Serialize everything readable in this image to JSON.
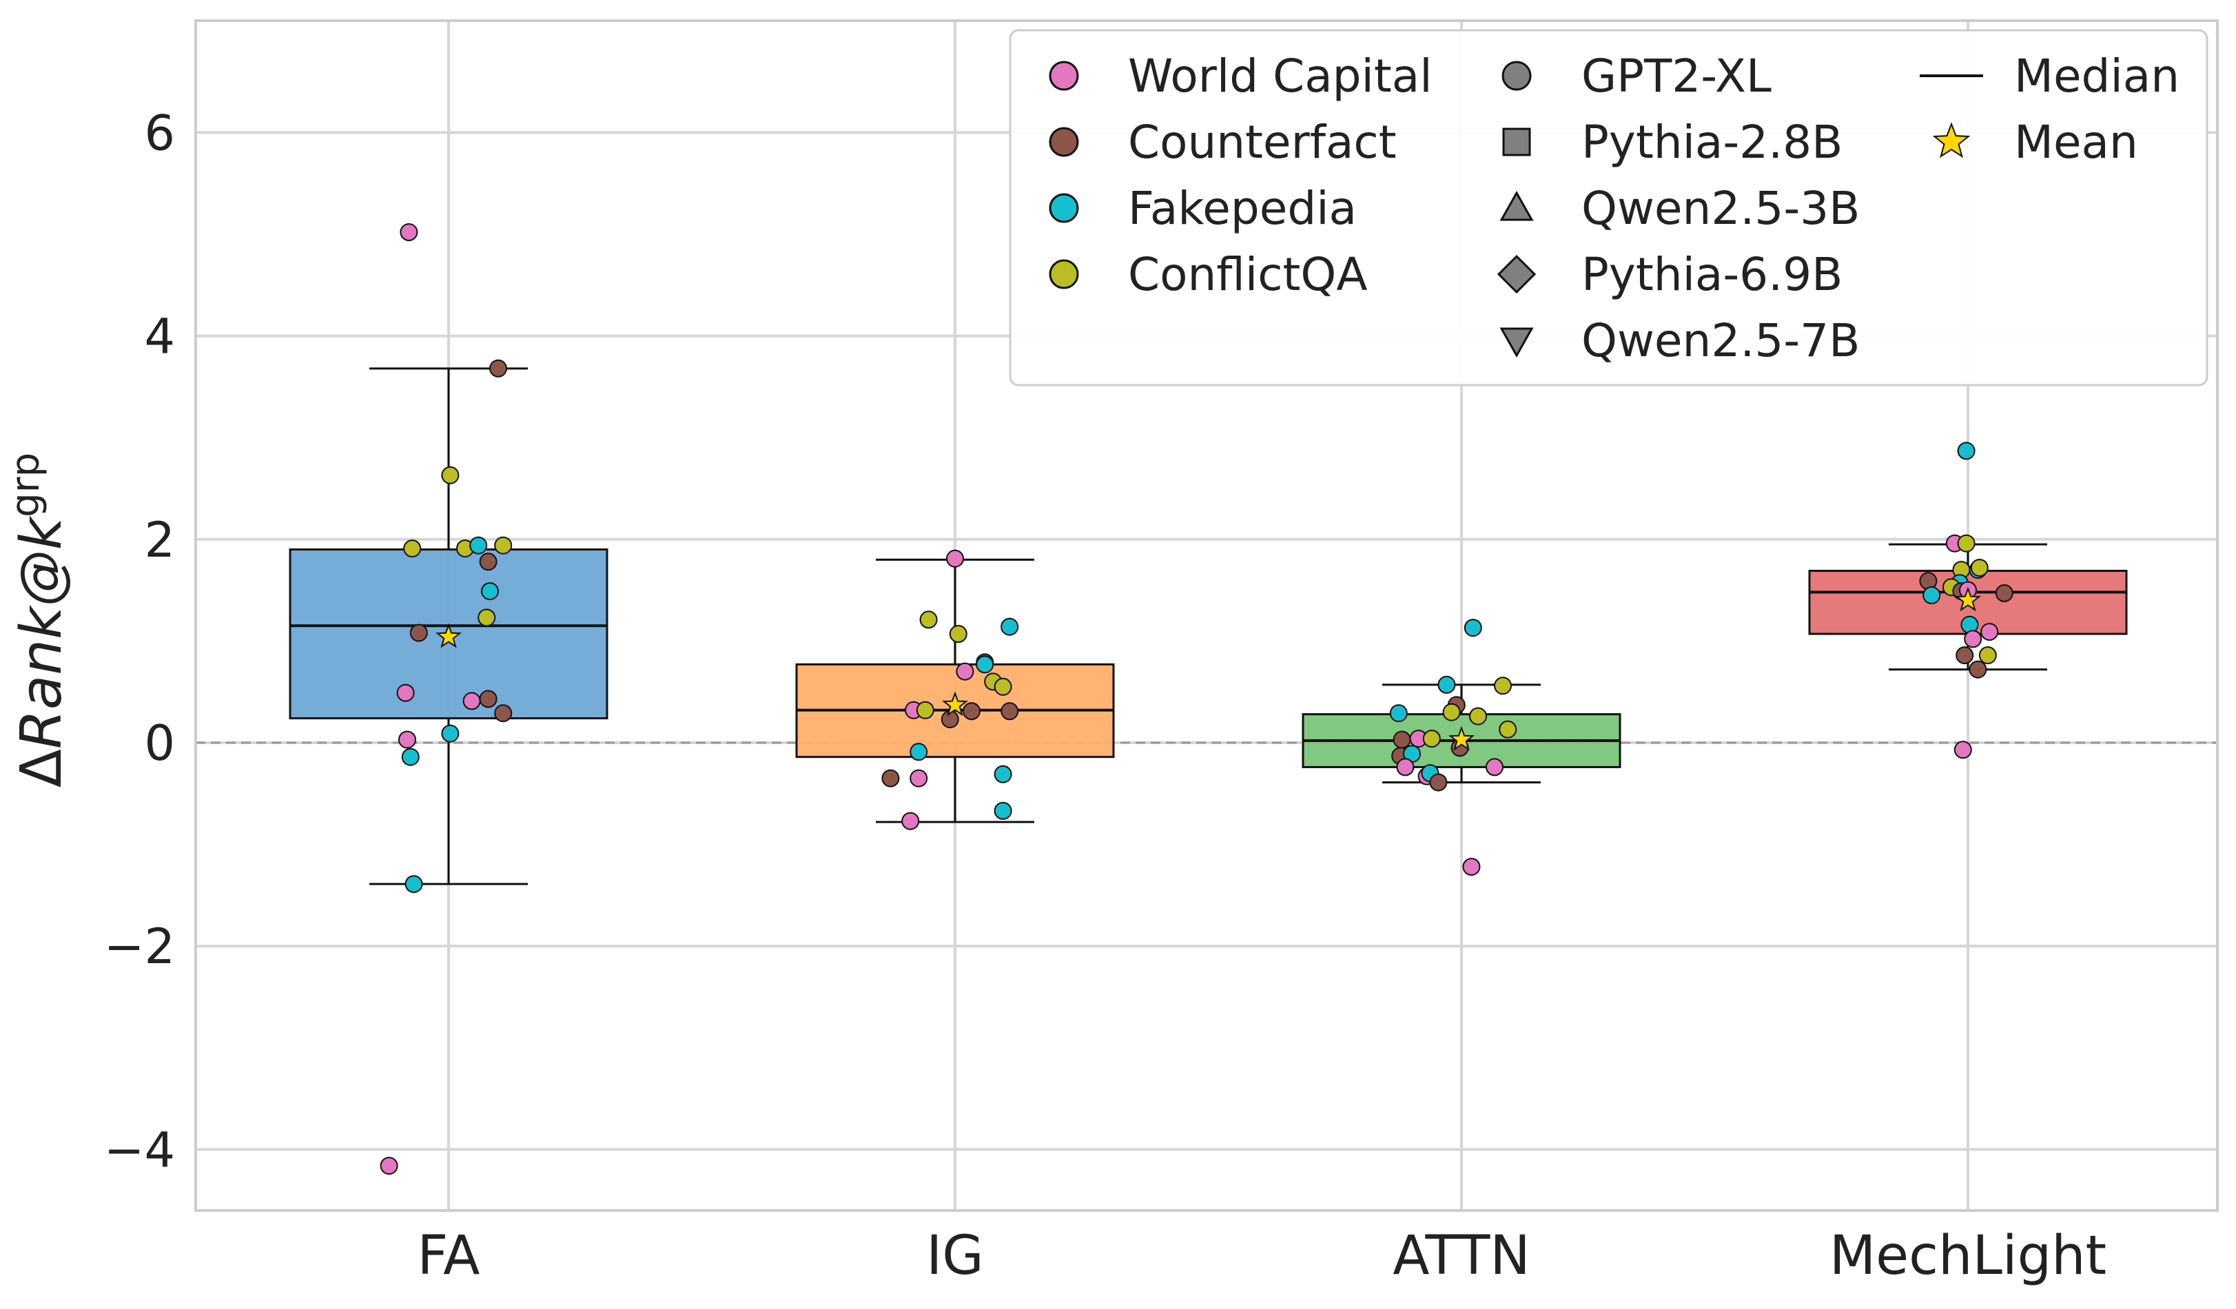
{
  "chart_data": {
    "type": "box",
    "ylabel": {
      "prefix": "Δ",
      "main": "Rank@k",
      "sup": "grp"
    },
    "ylim": [
      -4.6,
      7.1
    ],
    "yticks": [
      {
        "value": -4,
        "label": "−4"
      },
      {
        "value": -2,
        "label": "−2"
      },
      {
        "value": 0,
        "label": "0"
      },
      {
        "value": 2,
        "label": "2"
      },
      {
        "value": 4,
        "label": "4"
      },
      {
        "value": 6,
        "label": "6"
      }
    ],
    "reference_line": 0,
    "categories": [
      "FA",
      "IG",
      "ATTN",
      "MechLight"
    ],
    "boxes": [
      {
        "category": "FA",
        "color": "#6fa8d6",
        "q1": 0.24,
        "median": 1.15,
        "q3": 1.9,
        "whisker_low": -1.39,
        "whisker_high": 3.68,
        "mean": 1.04
      },
      {
        "category": "IG",
        "color": "#ffb06b",
        "q1": -0.14,
        "median": 0.32,
        "q3": 0.77,
        "whisker_low": -0.78,
        "whisker_high": 1.8,
        "mean": 0.37
      },
      {
        "category": "ATTN",
        "color": "#7ac67a",
        "q1": -0.24,
        "median": 0.02,
        "q3": 0.28,
        "whisker_low": -0.39,
        "whisker_high": 0.57,
        "mean": 0.03
      },
      {
        "category": "MechLight",
        "color": "#e57373",
        "q1": 1.07,
        "median": 1.48,
        "q3": 1.69,
        "whisker_low": 0.72,
        "whisker_high": 1.95,
        "mean": 1.4
      }
    ],
    "points": [
      {
        "category": "FA",
        "dataset": "World Capital",
        "jitter": -0.24,
        "value": 5.02
      },
      {
        "category": "FA",
        "dataset": "Counterfact",
        "jitter": 0.3,
        "value": 3.68
      },
      {
        "category": "FA",
        "dataset": "ConflictQA",
        "jitter": 0.01,
        "value": 2.63
      },
      {
        "category": "FA",
        "dataset": "ConflictQA",
        "jitter": -0.22,
        "value": 1.91
      },
      {
        "category": "FA",
        "dataset": "ConflictQA",
        "jitter": 0.1,
        "value": 1.91
      },
      {
        "category": "FA",
        "dataset": "Fakepedia",
        "jitter": 0.18,
        "value": 1.94
      },
      {
        "category": "FA",
        "dataset": "ConflictQA",
        "jitter": 0.33,
        "value": 1.94
      },
      {
        "category": "FA",
        "dataset": "Counterfact",
        "jitter": 0.24,
        "value": 1.78
      },
      {
        "category": "FA",
        "dataset": "Fakepedia",
        "jitter": 0.25,
        "value": 1.49
      },
      {
        "category": "FA",
        "dataset": "ConflictQA",
        "jitter": 0.23,
        "value": 1.23
      },
      {
        "category": "FA",
        "dataset": "Counterfact",
        "jitter": -0.18,
        "value": 1.08
      },
      {
        "category": "FA",
        "dataset": "World Capital",
        "jitter": -0.26,
        "value": 0.49
      },
      {
        "category": "FA",
        "dataset": "World Capital",
        "jitter": 0.14,
        "value": 0.41
      },
      {
        "category": "FA",
        "dataset": "Counterfact",
        "jitter": 0.24,
        "value": 0.43
      },
      {
        "category": "FA",
        "dataset": "Counterfact",
        "jitter": 0.33,
        "value": 0.29
      },
      {
        "category": "FA",
        "dataset": "Fakepedia",
        "jitter": 0.01,
        "value": 0.09
      },
      {
        "category": "FA",
        "dataset": "World Capital",
        "jitter": -0.25,
        "value": 0.03
      },
      {
        "category": "FA",
        "dataset": "Fakepedia",
        "jitter": -0.23,
        "value": -0.14
      },
      {
        "category": "FA",
        "dataset": "Fakepedia",
        "jitter": -0.21,
        "value": -1.39
      },
      {
        "category": "FA",
        "dataset": "World Capital",
        "jitter": -0.36,
        "value": -4.16
      },
      {
        "category": "IG",
        "dataset": "World Capital",
        "jitter": 0.0,
        "value": 1.81
      },
      {
        "category": "IG",
        "dataset": "ConflictQA",
        "jitter": -0.16,
        "value": 1.21
      },
      {
        "category": "IG",
        "dataset": "Fakepedia",
        "jitter": 0.33,
        "value": 1.14
      },
      {
        "category": "IG",
        "dataset": "ConflictQA",
        "jitter": 0.02,
        "value": 1.07
      },
      {
        "category": "IG",
        "dataset": "Counterfact",
        "jitter": 0.18,
        "value": 0.79
      },
      {
        "category": "IG",
        "dataset": "Fakepedia",
        "jitter": 0.18,
        "value": 0.77
      },
      {
        "category": "IG",
        "dataset": "World Capital",
        "jitter": 0.06,
        "value": 0.7
      },
      {
        "category": "IG",
        "dataset": "ConflictQA",
        "jitter": 0.23,
        "value": 0.6
      },
      {
        "category": "IG",
        "dataset": "ConflictQA",
        "jitter": 0.29,
        "value": 0.55
      },
      {
        "category": "IG",
        "dataset": "World Capital",
        "jitter": -0.25,
        "value": 0.32
      },
      {
        "category": "IG",
        "dataset": "ConflictQA",
        "jitter": -0.18,
        "value": 0.32
      },
      {
        "category": "IG",
        "dataset": "Counterfact",
        "jitter": 0.1,
        "value": 0.31
      },
      {
        "category": "IG",
        "dataset": "Counterfact",
        "jitter": 0.33,
        "value": 0.31
      },
      {
        "category": "IG",
        "dataset": "Counterfact",
        "jitter": -0.03,
        "value": 0.23
      },
      {
        "category": "IG",
        "dataset": "Fakepedia",
        "jitter": -0.22,
        "value": -0.09
      },
      {
        "category": "IG",
        "dataset": "Fakepedia",
        "jitter": 0.29,
        "value": -0.31
      },
      {
        "category": "IG",
        "dataset": "Counterfact",
        "jitter": -0.39,
        "value": -0.35
      },
      {
        "category": "IG",
        "dataset": "World Capital",
        "jitter": -0.22,
        "value": -0.35
      },
      {
        "category": "IG",
        "dataset": "Fakepedia",
        "jitter": 0.29,
        "value": -0.67
      },
      {
        "category": "IG",
        "dataset": "World Capital",
        "jitter": -0.27,
        "value": -0.77
      },
      {
        "category": "ATTN",
        "dataset": "Fakepedia",
        "jitter": 0.07,
        "value": 1.13
      },
      {
        "category": "ATTN",
        "dataset": "Fakepedia",
        "jitter": -0.09,
        "value": 0.57
      },
      {
        "category": "ATTN",
        "dataset": "ConflictQA",
        "jitter": 0.25,
        "value": 0.56
      },
      {
        "category": "ATTN",
        "dataset": "Counterfact",
        "jitter": -0.03,
        "value": 0.37
      },
      {
        "category": "ATTN",
        "dataset": "ConflictQA",
        "jitter": -0.06,
        "value": 0.3
      },
      {
        "category": "ATTN",
        "dataset": "Fakepedia",
        "jitter": -0.38,
        "value": 0.29
      },
      {
        "category": "ATTN",
        "dataset": "ConflictQA",
        "jitter": 0.1,
        "value": 0.26
      },
      {
        "category": "ATTN",
        "dataset": "ConflictQA",
        "jitter": 0.28,
        "value": 0.13
      },
      {
        "category": "ATTN",
        "dataset": "World Capital",
        "jitter": -0.26,
        "value": 0.04
      },
      {
        "category": "ATTN",
        "dataset": "Counterfact",
        "jitter": -0.36,
        "value": 0.03
      },
      {
        "category": "ATTN",
        "dataset": "ConflictQA",
        "jitter": -0.18,
        "value": 0.04
      },
      {
        "category": "ATTN",
        "dataset": "Counterfact",
        "jitter": -0.01,
        "value": -0.05
      },
      {
        "category": "ATTN",
        "dataset": "Counterfact",
        "jitter": -0.37,
        "value": -0.13
      },
      {
        "category": "ATTN",
        "dataset": "Fakepedia",
        "jitter": -0.3,
        "value": -0.11
      },
      {
        "category": "ATTN",
        "dataset": "World Capital",
        "jitter": -0.34,
        "value": -0.24
      },
      {
        "category": "ATTN",
        "dataset": "World Capital",
        "jitter": 0.2,
        "value": -0.24
      },
      {
        "category": "ATTN",
        "dataset": "World Capital",
        "jitter": -0.21,
        "value": -0.33
      },
      {
        "category": "ATTN",
        "dataset": "Fakepedia",
        "jitter": -0.19,
        "value": -0.3
      },
      {
        "category": "ATTN",
        "dataset": "Counterfact",
        "jitter": -0.14,
        "value": -0.39
      },
      {
        "category": "ATTN",
        "dataset": "World Capital",
        "jitter": 0.06,
        "value": -1.22
      },
      {
        "category": "MechLight",
        "dataset": "Fakepedia",
        "jitter": -0.01,
        "value": 2.87
      },
      {
        "category": "MechLight",
        "dataset": "World Capital",
        "jitter": -0.08,
        "value": 1.96
      },
      {
        "category": "MechLight",
        "dataset": "ConflictQA",
        "jitter": -0.01,
        "value": 1.96
      },
      {
        "category": "MechLight",
        "dataset": "ConflictQA",
        "jitter": -0.04,
        "value": 1.7
      },
      {
        "category": "MechLight",
        "dataset": "Fakepedia",
        "jitter": 0.06,
        "value": 1.7
      },
      {
        "category": "MechLight",
        "dataset": "ConflictQA",
        "jitter": 0.07,
        "value": 1.72
      },
      {
        "category": "MechLight",
        "dataset": "Counterfact",
        "jitter": -0.24,
        "value": 1.59
      },
      {
        "category": "MechLight",
        "dataset": "Fakepedia",
        "jitter": -0.05,
        "value": 1.57
      },
      {
        "category": "MechLight",
        "dataset": "ConflictQA",
        "jitter": -0.1,
        "value": 1.53
      },
      {
        "category": "MechLight",
        "dataset": "Counterfact",
        "jitter": -0.04,
        "value": 1.49
      },
      {
        "category": "MechLight",
        "dataset": "World Capital",
        "jitter": 0.0,
        "value": 1.5
      },
      {
        "category": "MechLight",
        "dataset": "Counterfact",
        "jitter": 0.22,
        "value": 1.47
      },
      {
        "category": "MechLight",
        "dataset": "Fakepedia",
        "jitter": -0.22,
        "value": 1.45
      },
      {
        "category": "MechLight",
        "dataset": "Fakepedia",
        "jitter": 0.01,
        "value": 1.16
      },
      {
        "category": "MechLight",
        "dataset": "World Capital",
        "jitter": 0.13,
        "value": 1.09
      },
      {
        "category": "MechLight",
        "dataset": "World Capital",
        "jitter": 0.03,
        "value": 1.02
      },
      {
        "category": "MechLight",
        "dataset": "Counterfact",
        "jitter": -0.02,
        "value": 0.86
      },
      {
        "category": "MechLight",
        "dataset": "ConflictQA",
        "jitter": 0.12,
        "value": 0.86
      },
      {
        "category": "MechLight",
        "dataset": "Counterfact",
        "jitter": 0.06,
        "value": 0.72
      },
      {
        "category": "MechLight",
        "dataset": "World Capital",
        "jitter": -0.03,
        "value": -0.07
      }
    ],
    "colors": {
      "World Capital": "#e377c2",
      "Counterfact": "#8c564b",
      "Fakepedia": "#17becf",
      "ConflictQA": "#bcbd22",
      "mean_star": "#ffd700",
      "gridline": "#d6d6d6",
      "reference_line": "#999999",
      "model_marker": "#808080"
    },
    "legend": {
      "position": "top-right",
      "datasets": [
        "World Capital",
        "Counterfact",
        "Fakepedia",
        "ConflictQA"
      ],
      "models": [
        {
          "label": "GPT2-XL",
          "icon": "circle-icon"
        },
        {
          "label": "Pythia-2.8B",
          "icon": "square-icon"
        },
        {
          "label": "Qwen2.5-3B",
          "icon": "triangle-up-icon"
        },
        {
          "label": "Pythia-6.9B",
          "icon": "diamond-icon"
        },
        {
          "label": "Qwen2.5-7B",
          "icon": "triangle-down-icon"
        }
      ],
      "stats": [
        {
          "label": "Median",
          "icon": "line-icon"
        },
        {
          "label": "Mean",
          "icon": "star-icon"
        }
      ]
    }
  }
}
